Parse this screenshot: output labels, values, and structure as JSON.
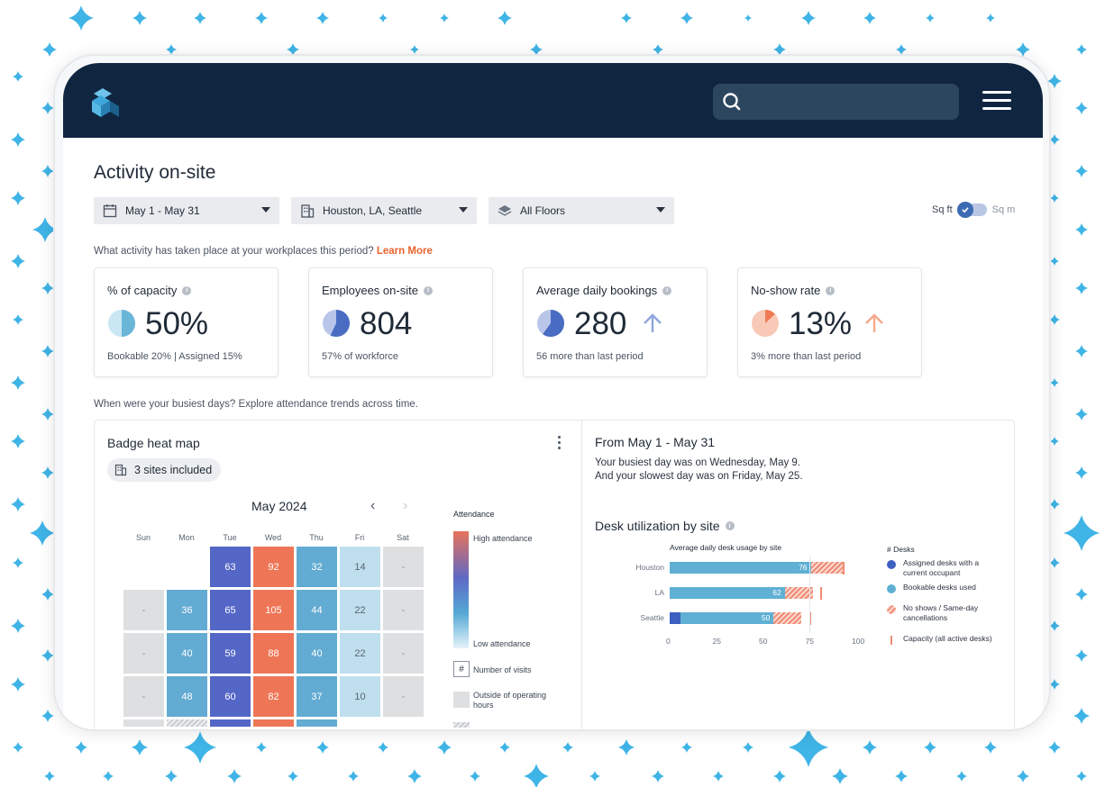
{
  "header": {
    "logo_icon": "stacked-cubes-logo-icon",
    "search": {
      "placeholder": "",
      "icon": "search-icon"
    },
    "menu_icon": "hamburger-icon"
  },
  "page": {
    "title": "Activity on-site",
    "filters": {
      "date_range": "May 1 - May 31",
      "locations": "Houston, LA, Seattle",
      "floors": "All Floors"
    },
    "unit_toggle": {
      "left": "Sq ft",
      "right": "Sq m",
      "selected": "Sq ft"
    },
    "helper_activity": "What activity has taken place at your workplaces this period?",
    "learn_more": "Learn More",
    "helper_busiest": "When were your busiest days? Explore attendance trends across time."
  },
  "kpis": [
    {
      "title": "% of capacity",
      "value": "50%",
      "sub": "Bookable 20% | Assigned 15%",
      "fill": 0.5,
      "color": "#6ab6d8",
      "trend": ""
    },
    {
      "title": "Employees on-site",
      "value": "804",
      "sub": "57% of workforce",
      "fill": 0.57,
      "color": "#4a6cc2",
      "trend": ""
    },
    {
      "title": "Average daily bookings",
      "value": "280",
      "sub": "56 more than last period",
      "fill": 0.6,
      "color": "#4a6cc2",
      "trend": "up"
    },
    {
      "title": "No-show rate",
      "value": "13%",
      "sub": "3% more than last period",
      "fill": 0.13,
      "color": "#ef7b55",
      "trend": "up"
    }
  ],
  "heatmap": {
    "title": "Badge heat map",
    "sites_chip": "3 sites included",
    "month_label": "May 2024",
    "weekdays": [
      "Sun",
      "Mon",
      "Tue",
      "Wed",
      "Thu",
      "Fri",
      "Sat"
    ],
    "weeks": [
      [
        "",
        "",
        "63",
        "92",
        "32",
        "14",
        "-"
      ],
      [
        "-",
        "36",
        "65",
        "105",
        "44",
        "22",
        "-"
      ],
      [
        "-",
        "40",
        "59",
        "88",
        "40",
        "22",
        "-"
      ],
      [
        "-",
        "48",
        "60",
        "82",
        "37",
        "10",
        "-"
      ]
    ],
    "legend": {
      "title": "Attendance",
      "high": "High attendance",
      "low": "Low attendance",
      "visits_symbol": "#",
      "visits": "Number of visits",
      "outside_hours": "Outside of operating hours"
    }
  },
  "summary": {
    "title": "From May 1 - May 31",
    "busiest": "Your busiest day was on Wednesday,  May 9.",
    "slowest": "And your slowest day was on Friday, May 25."
  },
  "desk_utilization": {
    "title": "Desk utilization by site",
    "chart_data": {
      "type": "bar",
      "title": "Average daily desk usage by site",
      "categories": [
        "Houston",
        "LA",
        "Seattle"
      ],
      "series": [
        {
          "name": "Assigned desks with a current occupant",
          "values": [
            0,
            0,
            6
          ]
        },
        {
          "name": "Bookable desks used",
          "values": [
            76,
            62,
            50
          ]
        },
        {
          "name": "No shows / Same-day cancellations",
          "values": [
            18,
            15,
            15
          ]
        }
      ],
      "capacity": [
        93,
        81,
        75
      ],
      "data_labels": [
        "76",
        "62",
        "50"
      ],
      "x_ticks": [
        "0",
        "25",
        "50",
        "75",
        "100"
      ],
      "xlim": [
        0,
        100
      ],
      "legend_title": "# Desks",
      "capacity_label": "Capacity (all active desks)",
      "colors": {
        "assigned": "#3d5fc0",
        "bookable": "#5fb0d4",
        "noshow": "#ef8a74",
        "capacity": "#ef8a74"
      }
    }
  }
}
